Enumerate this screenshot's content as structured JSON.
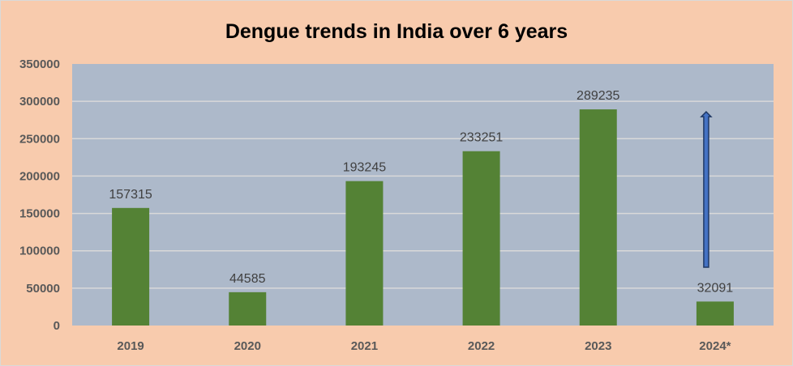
{
  "chart_data": {
    "type": "bar",
    "title": "Dengue trends in India over 6 years",
    "categories": [
      "2019",
      "2020",
      "2021",
      "2022",
      "2023",
      "2024*"
    ],
    "values": [
      157315,
      44585,
      193245,
      233251,
      289235,
      32091
    ],
    "data_labels": [
      "157315",
      "44585",
      "193245",
      "233251",
      "289235",
      "32091"
    ],
    "xlabel": "",
    "ylabel": "",
    "ylim": [
      0,
      350000
    ],
    "yticks": [
      0,
      50000,
      100000,
      150000,
      200000,
      250000,
      300000,
      350000
    ],
    "ytick_labels": [
      "0",
      "50000",
      "100000",
      "150000",
      "200000",
      "250000",
      "300000",
      "350000"
    ],
    "grid": true,
    "legend": "none",
    "annotations": [
      {
        "type": "upward-arrow",
        "category": "2024*",
        "from_value": 78000,
        "to_value": 286000
      }
    ],
    "colors": {
      "background": "#F8CBAD",
      "plot_area": "#ADB9CA",
      "bar": "#548235",
      "gridline": "#D9D9D9",
      "arrow": "#2F5597"
    }
  }
}
